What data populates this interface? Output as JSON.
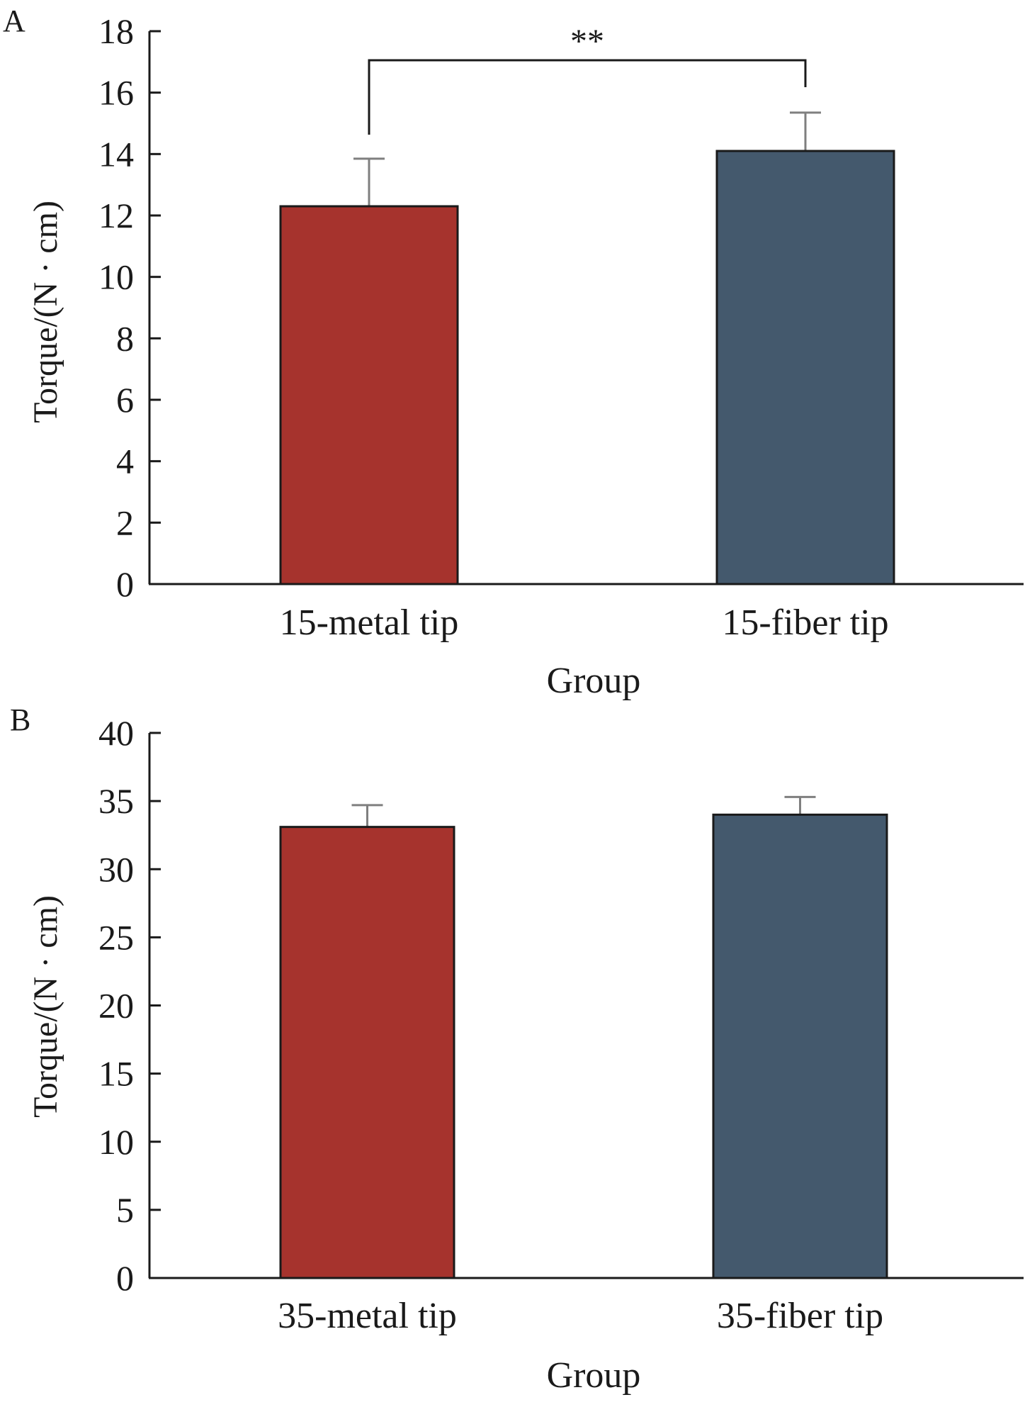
{
  "chart_data": [
    {
      "panel_label": "A",
      "type": "bar",
      "categories": [
        "15-metal tip",
        "15-fiber tip"
      ],
      "values": [
        12.3,
        14.1
      ],
      "errors": [
        1.55,
        1.25
      ],
      "colors": [
        "#a6332d",
        "#44596d"
      ],
      "xlabel": "Group",
      "ylabel": "Torque/(N · cm)",
      "ylim": [
        0,
        18
      ],
      "yticks": [
        "0",
        "2",
        "4",
        "6",
        "8",
        "10",
        "12",
        "14",
        "16",
        "18"
      ],
      "significance": {
        "label": "**",
        "between": [
          0,
          1
        ]
      }
    },
    {
      "panel_label": "B",
      "type": "bar",
      "categories": [
        "35-metal tip",
        "35-fiber tip"
      ],
      "values": [
        33.1,
        34.0
      ],
      "errors": [
        1.6,
        1.3
      ],
      "colors": [
        "#a6332d",
        "#44596d"
      ],
      "xlabel": "Group",
      "ylabel": "Torque/(N · cm)",
      "ylim": [
        0,
        40
      ],
      "yticks": [
        "0",
        "5",
        "10",
        "15",
        "20",
        "25",
        "30",
        "35",
        "40"
      ]
    }
  ]
}
